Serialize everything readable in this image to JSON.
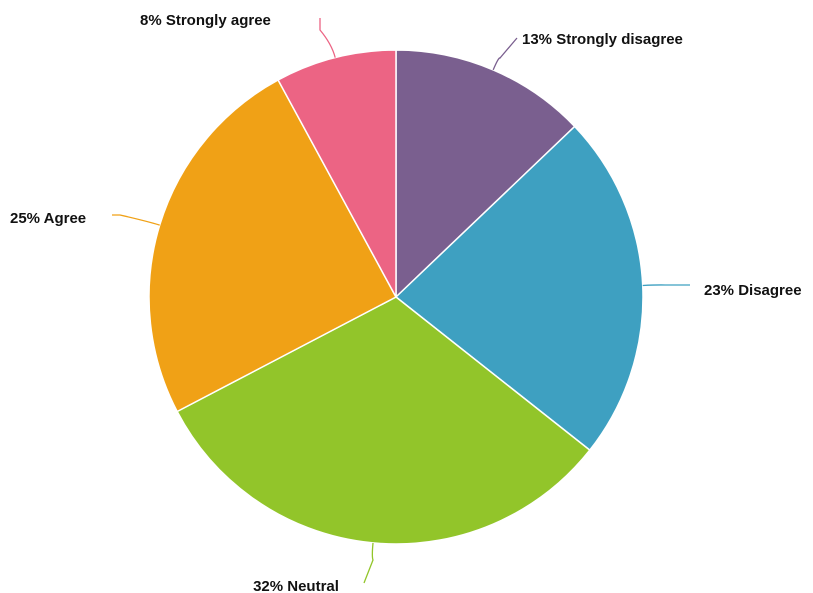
{
  "chart_data": {
    "type": "pie",
    "title": "",
    "series": [
      {
        "name": "",
        "values": [
          13,
          23,
          32,
          25,
          8
        ]
      }
    ],
    "slices": [
      {
        "label": "13% Strongly disagree",
        "category": "Strongly disagree",
        "value": 13,
        "color": "#7a5f8f"
      },
      {
        "label": "23% Disagree",
        "category": "Disagree",
        "value": 23,
        "color": "#3ea0c1"
      },
      {
        "label": "32% Neutral",
        "category": "Neutral",
        "value": 32,
        "color": "#92c52a"
      },
      {
        "label": "25% Agree",
        "category": "Agree",
        "value": 25,
        "color": "#f0a116"
      },
      {
        "label": "8% Strongly agree",
        "category": "Strongly agree",
        "value": 8,
        "color": "#ec6484"
      }
    ],
    "start_angle": "12 o'clock",
    "direction": "clockwise",
    "legend": "none",
    "labels": "outside with leader lines"
  }
}
